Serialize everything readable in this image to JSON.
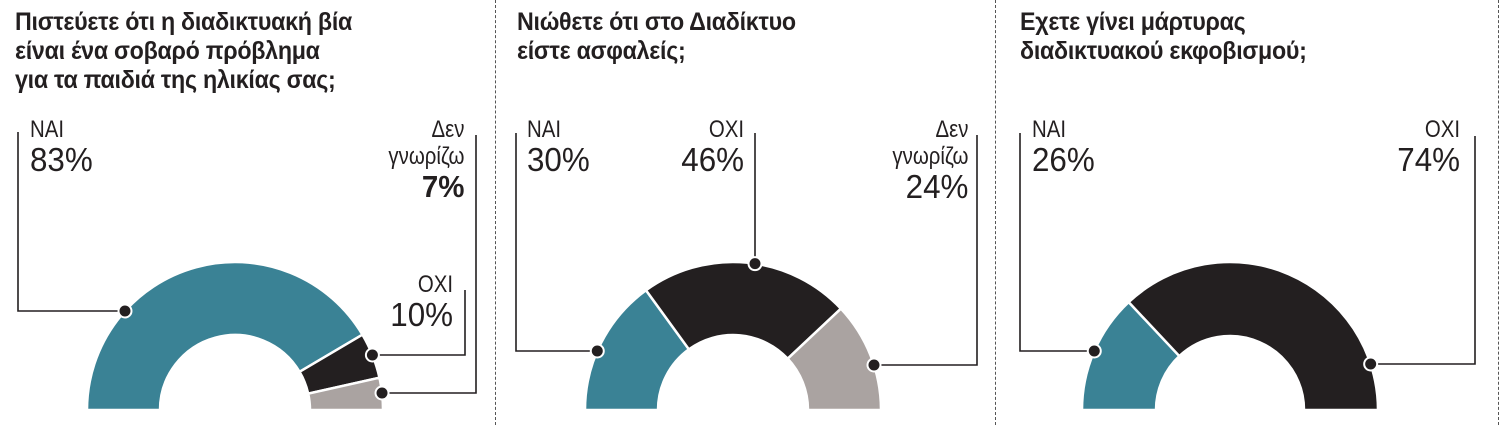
{
  "colors": {
    "yes": "#3a8295",
    "no": "#231f20",
    "dont_know": "#aaa3a1",
    "line": "#231f20",
    "divider": "#555555"
  },
  "chart_data": [
    {
      "type": "pie",
      "variant": "semi-donut",
      "title": "Πιστεύετε ότι η διαδικτυακή βία είναι ένα σοβαρό πρόβλημα για τα παιδιά της ηλικίας σας;",
      "title_lines": [
        "Πιστεύετε ότι η διαδικτυακή βία",
        "είναι ένα σοβαρό πρόβλημα",
        "για τα παιδιά της ηλικίας σας;"
      ],
      "categories": [
        "ΝΑΙ",
        "ΟΧΙ",
        "Δεν γνωρίζω"
      ],
      "values": [
        83,
        10,
        7
      ],
      "unit": "%",
      "labels": [
        {
          "name": "ΝΑΙ",
          "value": "83%"
        },
        {
          "name": "ΟΧΙ",
          "value": "10%"
        },
        {
          "name": "Δεν γνωρίζω",
          "name_lines": [
            "Δεν",
            "γνωρίζω"
          ],
          "value": "7%"
        }
      ]
    },
    {
      "type": "pie",
      "variant": "semi-donut",
      "title": "Νιώθετε ότι στο Διαδίκτυο είστε ασφαλείς;",
      "title_lines": [
        "Νιώθετε ότι στο Διαδίκτυο",
        "είστε ασφαλείς;"
      ],
      "categories": [
        "ΝΑΙ",
        "ΟΧΙ",
        "Δεν γνωρίζω"
      ],
      "values": [
        30,
        46,
        24
      ],
      "unit": "%",
      "labels": [
        {
          "name": "ΝΑΙ",
          "value": "30%"
        },
        {
          "name": "ΟΧΙ",
          "value": "46%"
        },
        {
          "name": "Δεν γνωρίζω",
          "name_lines": [
            "Δεν",
            "γνωρίζω"
          ],
          "value": "24%"
        }
      ]
    },
    {
      "type": "pie",
      "variant": "semi-donut",
      "title": "Εχετε γίνει μάρτυρας διαδικτυακού εκφοβισμού;",
      "title_lines": [
        "Εχετε γίνει μάρτυρας",
        "διαδικτυακού εκφοβισμού;"
      ],
      "categories": [
        "ΝΑΙ",
        "ΟΧΙ"
      ],
      "values": [
        26,
        74
      ],
      "unit": "%",
      "labels": [
        {
          "name": "ΝΑΙ",
          "value": "26%"
        },
        {
          "name": "ΟΧΙ",
          "value": "74%"
        }
      ]
    }
  ]
}
